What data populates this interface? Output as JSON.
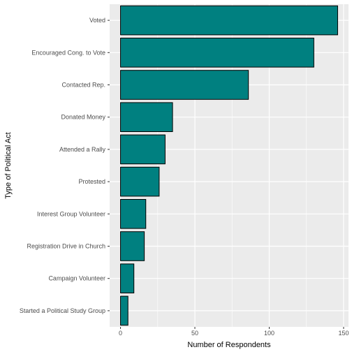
{
  "chart_data": {
    "type": "bar",
    "orientation": "horizontal",
    "categories": [
      "Voted",
      "Encouraged Cong. to Vote",
      "Contacted Rep.",
      "Donated Money",
      "Attended a Rally",
      "Protested",
      "Interest Group Volunteer",
      "Registration Drive in Church",
      "Campaign Volunteer",
      "Started a Political Study Group"
    ],
    "values": [
      146,
      130,
      86,
      35,
      30,
      26,
      17,
      16,
      9,
      5
    ],
    "xlabel": "Number of Respondents",
    "ylabel": "Type of Political Act",
    "xlim": [
      -7.3,
      153.3
    ],
    "x_ticks": [
      0,
      50,
      100,
      150
    ],
    "x_tick_labels": [
      "0",
      "50",
      "100",
      "150"
    ],
    "grid": true,
    "colors": {
      "bar_fill": "#008080",
      "bar_stroke": "#000000",
      "panel_background": "#EBEBEB",
      "grid_major": "#FFFFFF",
      "tick_text": "#4D4D4D"
    }
  }
}
